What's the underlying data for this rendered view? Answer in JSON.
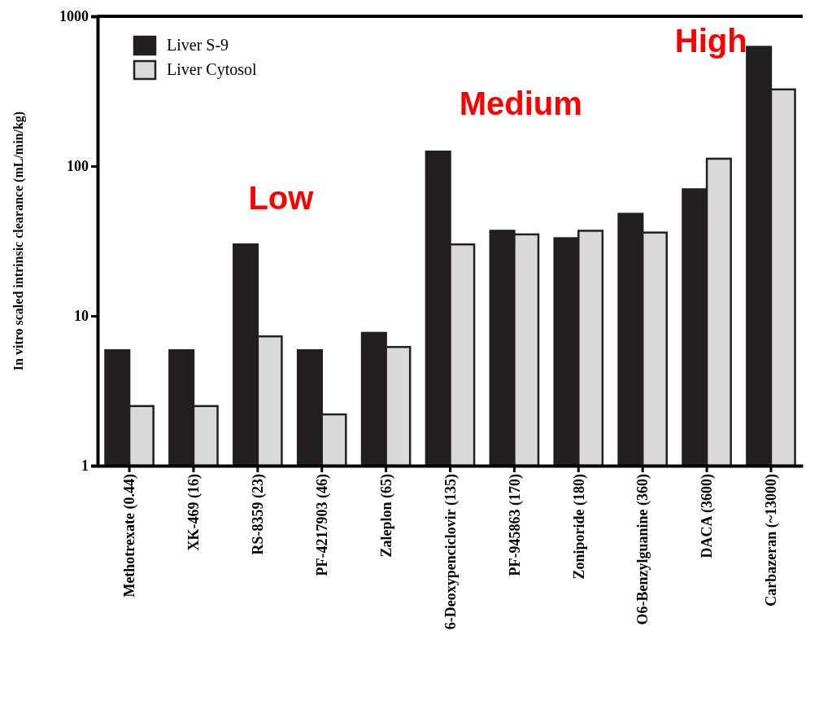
{
  "chart_data": {
    "type": "bar",
    "log": true,
    "ylabel": "In vitro scaled intrinsic clearance (mL/min/kg)",
    "categories": [
      "Methotrexate (0.44)",
      "XK-469 (16)",
      "RS-8359 (23)",
      "PF-4217903 (46)",
      "Zaleplon (65)",
      "6-Deoxypenciclovir (135)",
      "PF-945863 (170)",
      "Zoniporide (180)",
      "O6-Benzylguanine (360)",
      "DACA (3600)",
      "Carbazeran (~13000)"
    ],
    "series": [
      {
        "name": "Liver S-9",
        "color": "#231f20",
        "values": [
          5.9,
          5.9,
          30,
          5.9,
          7.7,
          125,
          37,
          33,
          48,
          70,
          625
        ]
      },
      {
        "name": "Liver Cytosol",
        "color": "#d9d9d9",
        "values": [
          2.5,
          2.5,
          7.3,
          2.2,
          6.2,
          30,
          35,
          37,
          36,
          112,
          325
        ]
      }
    ],
    "ylim": [
      1,
      1000
    ],
    "yticks": [
      1,
      10,
      100,
      1000
    ],
    "grid": false,
    "legend": "top left",
    "annotations": [
      "Low",
      "Medium",
      "High"
    ]
  }
}
